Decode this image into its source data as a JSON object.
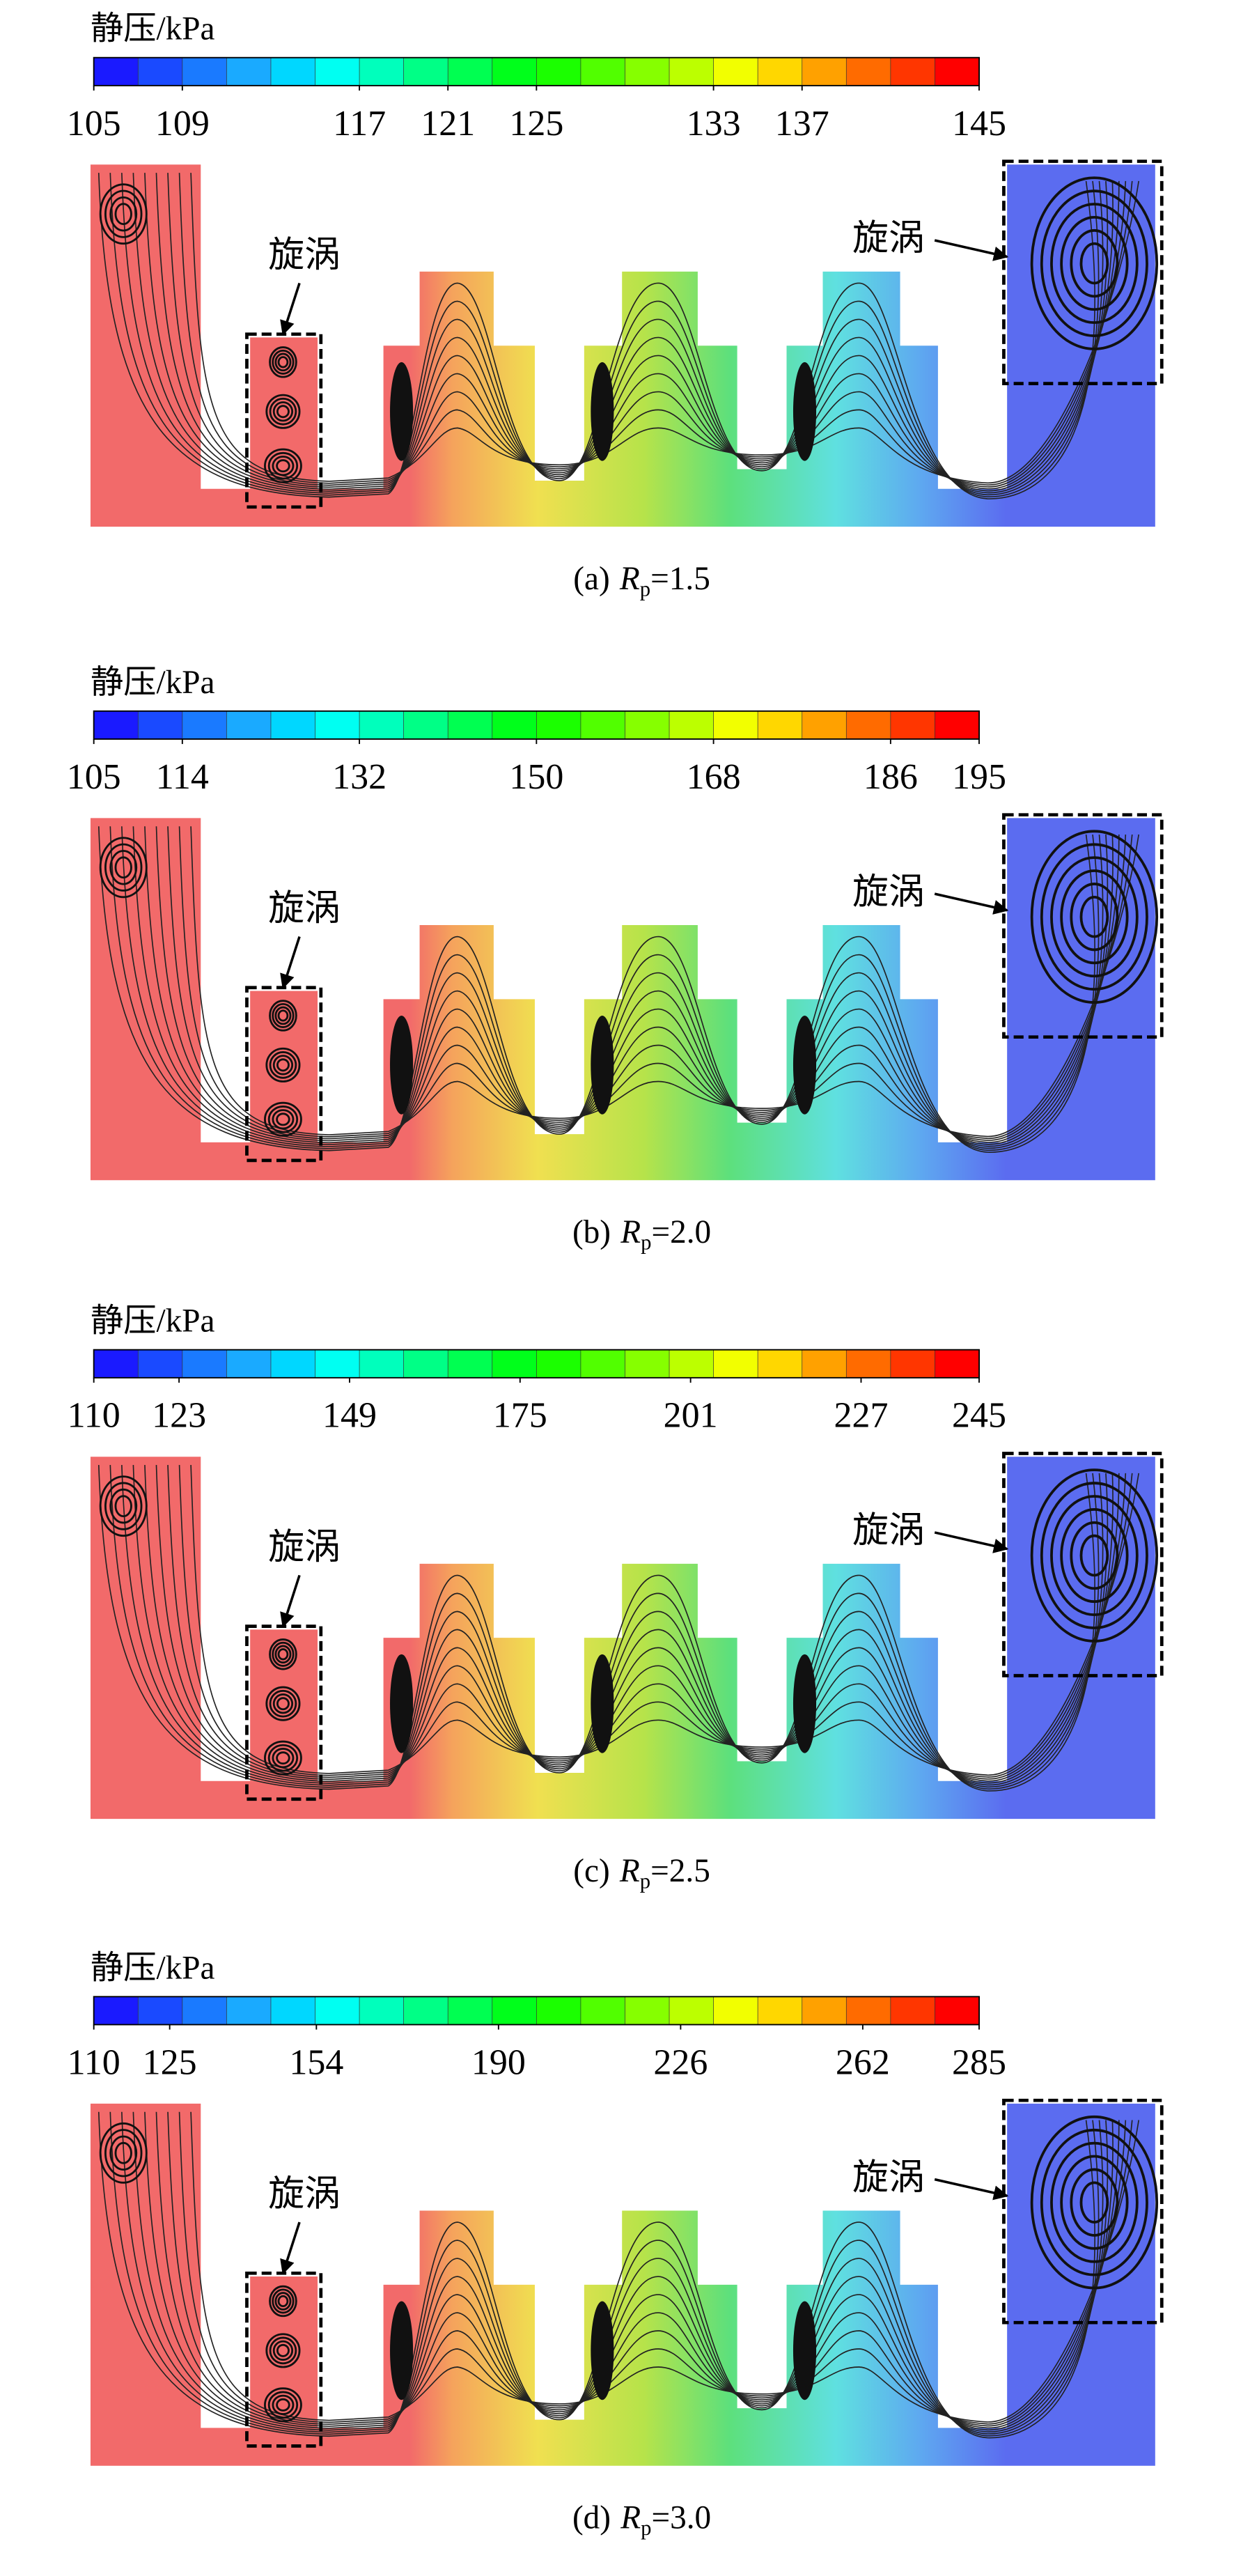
{
  "panels": [
    {
      "colorbar": {
        "title": "静压/kPa",
        "ticks": [
          105,
          109,
          117,
          121,
          125,
          133,
          137,
          145
        ]
      },
      "annotations": [
        "旋涡",
        "旋涡"
      ],
      "caption": {
        "label": "(a)",
        "symbol": "R",
        "subscript": "p",
        "value": "=1.5"
      }
    },
    {
      "colorbar": {
        "title": "静压/kPa",
        "ticks": [
          105,
          114,
          132,
          150,
          168,
          186,
          195
        ]
      },
      "annotations": [
        "旋涡",
        "旋涡"
      ],
      "caption": {
        "label": "(b)",
        "symbol": "R",
        "subscript": "p",
        "value": "=2.0"
      }
    },
    {
      "colorbar": {
        "title": "静压/kPa",
        "ticks": [
          110,
          123,
          149,
          175,
          201,
          227,
          245
        ]
      },
      "annotations": [
        "旋涡",
        "旋涡"
      ],
      "caption": {
        "label": "(c)",
        "symbol": "R",
        "subscript": "p",
        "value": "=2.5"
      }
    },
    {
      "colorbar": {
        "title": "静压/kPa",
        "ticks": [
          110,
          125,
          154,
          190,
          226,
          262,
          285
        ]
      },
      "annotations": [
        "旋涡",
        "旋涡"
      ],
      "caption": {
        "label": "(d)",
        "symbol": "R",
        "subscript": "p",
        "value": "=3.0"
      }
    }
  ]
}
